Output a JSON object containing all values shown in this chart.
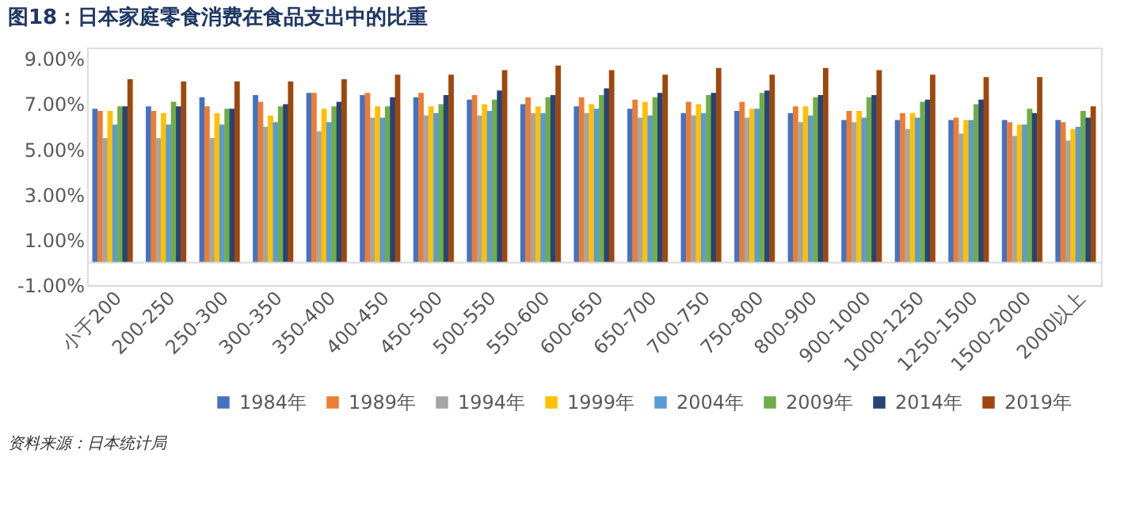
{
  "chart_data": {
    "type": "bar",
    "title": "图18：日本家庭零食消费在食品支出中的比重",
    "categories": [
      "小于200",
      "200-250",
      "250-300",
      "300-350",
      "350-400",
      "400-450",
      "450-500",
      "500-550",
      "550-600",
      "600-650",
      "650-700",
      "700-750",
      "750-800",
      "800-900",
      "900-1000",
      "1000-1250",
      "1250-1500",
      "1500-2000",
      "2000以上"
    ],
    "series": [
      {
        "name": "1984年",
        "color": "#4472c4",
        "values": [
          6.8,
          6.9,
          7.3,
          7.4,
          7.5,
          7.4,
          7.3,
          7.2,
          7.0,
          6.9,
          6.8,
          6.6,
          6.7,
          6.6,
          6.3,
          6.3,
          6.3,
          6.3,
          6.3
        ]
      },
      {
        "name": "1989年",
        "color": "#ed7d31",
        "values": [
          6.7,
          6.7,
          6.9,
          7.1,
          7.5,
          7.5,
          7.5,
          7.4,
          7.3,
          7.3,
          7.2,
          7.1,
          7.1,
          6.9,
          6.7,
          6.6,
          6.4,
          6.2,
          6.2
        ]
      },
      {
        "name": "1994年",
        "color": "#a5a5a5",
        "values": [
          5.5,
          5.5,
          5.5,
          6.0,
          5.8,
          6.4,
          6.5,
          6.5,
          6.6,
          6.6,
          6.4,
          6.5,
          6.4,
          6.2,
          6.2,
          5.9,
          5.7,
          5.6,
          5.4
        ]
      },
      {
        "name": "1999年",
        "color": "#ffc000",
        "values": [
          6.7,
          6.6,
          6.6,
          6.5,
          6.8,
          6.9,
          6.9,
          7.0,
          6.9,
          7.0,
          7.1,
          7.0,
          6.8,
          6.9,
          6.7,
          6.6,
          6.3,
          6.1,
          5.9
        ]
      },
      {
        "name": "2004年",
        "color": "#5b9bd5",
        "values": [
          6.1,
          6.1,
          6.1,
          6.2,
          6.2,
          6.4,
          6.6,
          6.7,
          6.6,
          6.8,
          6.5,
          6.6,
          6.8,
          6.5,
          6.4,
          6.4,
          6.3,
          6.1,
          6.0
        ]
      },
      {
        "name": "2009年",
        "color": "#70ad47",
        "values": [
          6.9,
          7.1,
          6.8,
          6.9,
          6.9,
          6.9,
          7.0,
          7.2,
          7.3,
          7.4,
          7.3,
          7.4,
          7.5,
          7.3,
          7.3,
          7.1,
          7.0,
          6.8,
          6.7
        ]
      },
      {
        "name": "2014年",
        "color": "#264478",
        "values": [
          6.9,
          6.9,
          6.8,
          7.0,
          7.1,
          7.3,
          7.4,
          7.6,
          7.4,
          7.7,
          7.5,
          7.5,
          7.6,
          7.4,
          7.4,
          7.2,
          7.2,
          6.6,
          6.4
        ]
      },
      {
        "name": "2019年",
        "color": "#9e480e",
        "values": [
          8.1,
          8.0,
          8.0,
          8.0,
          8.1,
          8.3,
          8.3,
          8.5,
          8.7,
          8.5,
          8.3,
          8.6,
          8.3,
          8.6,
          8.5,
          8.3,
          8.2,
          8.2,
          6.9
        ]
      }
    ],
    "ylim": [
      -1,
      9.5
    ],
    "yticks": [
      {
        "value": -1,
        "label": "-1.00%"
      },
      {
        "value": 1,
        "label": "1.00%"
      },
      {
        "value": 3,
        "label": "3.00%"
      },
      {
        "value": 5,
        "label": "5.00%"
      },
      {
        "value": 7,
        "label": "7.00%"
      },
      {
        "value": 9,
        "label": "9.00%"
      }
    ],
    "grid": false,
    "legend": "bottom",
    "annotations": [
      "资料来源：日本统计局"
    ]
  }
}
